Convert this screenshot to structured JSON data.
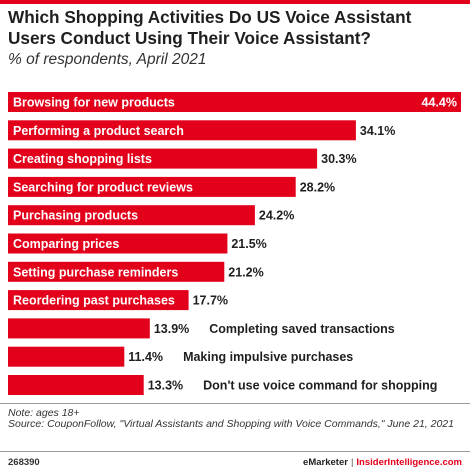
{
  "header": {
    "title": "Which Shopping Activities Do US Voice Assistant Users Conduct Using Their Voice Assistant?",
    "subtitle": "% of respondents, April 2021"
  },
  "colors": {
    "bar": "#e3001b",
    "bar_text": "#ffffff",
    "text": "#1f1f1f"
  },
  "chart_data": {
    "type": "bar",
    "orientation": "horizontal",
    "title": "Which Shopping Activities Do US Voice Assistant Users Conduct Using Their Voice Assistant?",
    "subtitle": "% of respondents, April 2021",
    "xlabel": "",
    "ylabel": "",
    "xlim": [
      0,
      44.4
    ],
    "grid": false,
    "categories": [
      "Browsing for new products",
      "Performing a product search",
      "Creating shopping lists",
      "Searching for product reviews",
      "Purchasing products",
      "Comparing prices",
      "Setting purchase reminders",
      "Reordering past purchases",
      "Completing saved transactions",
      "Making impulsive purchases",
      "Don't use voice command for shopping"
    ],
    "values": [
      44.4,
      34.1,
      30.3,
      28.2,
      24.2,
      21.5,
      21.2,
      17.7,
      13.9,
      11.4,
      13.3
    ],
    "value_labels": [
      "44.4%",
      "34.1%",
      "30.3%",
      "28.2%",
      "24.2%",
      "21.5%",
      "21.2%",
      "17.7%",
      "13.9%",
      "11.4%",
      "13.3%"
    ]
  },
  "footer": {
    "note": "Note: ages 18+",
    "source": "Source: CouponFollow, \"Virtual Assistants and Shopping with Voice Commands,\" June 21, 2021",
    "chart_id": "268390",
    "brand_emarketer": "eMarketer",
    "brand_separator": "|",
    "brand_insider": "InsiderIntelligence.com"
  }
}
